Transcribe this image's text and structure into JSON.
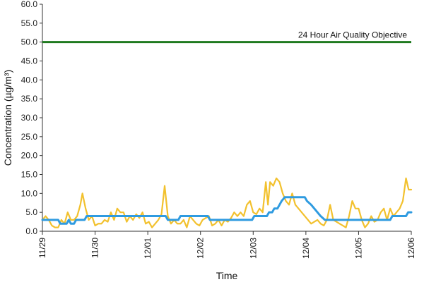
{
  "chart_data": {
    "type": "line",
    "xlabel": "Time",
    "ylabel": "Concentration (µg/m³)",
    "ylim": [
      0,
      60
    ],
    "yticks": [
      "0.0",
      "5.0",
      "10.0",
      "15.0",
      "20.0",
      "25.0",
      "30.0",
      "35.0",
      "40.0",
      "45.0",
      "50.0",
      "55.0",
      "60.0"
    ],
    "xticks": [
      "11/29",
      "11/30",
      "12/01",
      "12/02",
      "12/03",
      "12/04",
      "12/05",
      "12/06"
    ],
    "x_range_days": [
      0,
      7
    ],
    "grid": false,
    "colors": {
      "objective": "#1f7a1f",
      "series_yellow": "#f2c12e",
      "series_blue": "#2f9be0"
    },
    "objective_line": {
      "value": 50.0,
      "label": "24 Hour Air Quality Objective"
    },
    "series": [
      {
        "color": "#f2c12e",
        "points": [
          [
            0.0,
            3.0
          ],
          [
            0.06,
            4.0
          ],
          [
            0.12,
            3.0
          ],
          [
            0.18,
            1.5
          ],
          [
            0.24,
            1.0
          ],
          [
            0.3,
            1.0
          ],
          [
            0.36,
            3.0
          ],
          [
            0.42,
            2.0
          ],
          [
            0.48,
            5.0
          ],
          [
            0.54,
            3.0
          ],
          [
            0.6,
            3.0
          ],
          [
            0.66,
            4.0
          ],
          [
            0.72,
            7.0
          ],
          [
            0.76,
            10.0
          ],
          [
            0.82,
            6.0
          ],
          [
            0.88,
            3.0
          ],
          [
            0.94,
            4.0
          ],
          [
            1.0,
            1.5
          ],
          [
            1.06,
            2.0
          ],
          [
            1.12,
            2.0
          ],
          [
            1.18,
            3.0
          ],
          [
            1.24,
            2.5
          ],
          [
            1.3,
            5.0
          ],
          [
            1.36,
            3.0
          ],
          [
            1.42,
            6.0
          ],
          [
            1.48,
            5.0
          ],
          [
            1.54,
            5.0
          ],
          [
            1.6,
            2.5
          ],
          [
            1.66,
            4.0
          ],
          [
            1.72,
            3.0
          ],
          [
            1.78,
            4.5
          ],
          [
            1.84,
            3.5
          ],
          [
            1.9,
            5.0
          ],
          [
            1.96,
            2.0
          ],
          [
            2.02,
            2.5
          ],
          [
            2.08,
            1.0
          ],
          [
            2.14,
            2.0
          ],
          [
            2.2,
            3.0
          ],
          [
            2.26,
            4.5
          ],
          [
            2.32,
            12.0
          ],
          [
            2.38,
            4.0
          ],
          [
            2.44,
            2.0
          ],
          [
            2.5,
            3.0
          ],
          [
            2.56,
            2.0
          ],
          [
            2.62,
            2.0
          ],
          [
            2.68,
            3.0
          ],
          [
            2.74,
            1.0
          ],
          [
            2.8,
            4.0
          ],
          [
            2.86,
            3.0
          ],
          [
            2.92,
            2.0
          ],
          [
            2.98,
            1.5
          ],
          [
            3.04,
            3.0
          ],
          [
            3.1,
            3.5
          ],
          [
            3.16,
            4.0
          ],
          [
            3.22,
            1.5
          ],
          [
            3.28,
            2.0
          ],
          [
            3.34,
            3.0
          ],
          [
            3.4,
            1.5
          ],
          [
            3.46,
            3.0
          ],
          [
            3.52,
            2.5
          ],
          [
            3.58,
            3.5
          ],
          [
            3.64,
            5.0
          ],
          [
            3.7,
            4.0
          ],
          [
            3.76,
            5.0
          ],
          [
            3.82,
            4.0
          ],
          [
            3.88,
            7.0
          ],
          [
            3.94,
            8.0
          ],
          [
            4.0,
            5.0
          ],
          [
            4.06,
            4.5
          ],
          [
            4.12,
            6.0
          ],
          [
            4.18,
            5.0
          ],
          [
            4.24,
            13.0
          ],
          [
            4.28,
            7.0
          ],
          [
            4.32,
            13.0
          ],
          [
            4.38,
            12.0
          ],
          [
            4.44,
            14.0
          ],
          [
            4.5,
            13.0
          ],
          [
            4.56,
            10.0
          ],
          [
            4.62,
            8.0
          ],
          [
            4.68,
            7.0
          ],
          [
            4.74,
            10.0
          ],
          [
            4.8,
            7.0
          ],
          [
            4.86,
            6.0
          ],
          [
            4.92,
            5.0
          ],
          [
            4.98,
            4.0
          ],
          [
            5.04,
            3.0
          ],
          [
            5.1,
            2.0
          ],
          [
            5.16,
            2.5
          ],
          [
            5.22,
            3.0
          ],
          [
            5.28,
            2.0
          ],
          [
            5.34,
            1.5
          ],
          [
            5.4,
            3.0
          ],
          [
            5.46,
            7.0
          ],
          [
            5.52,
            3.0
          ],
          [
            5.58,
            2.5
          ],
          [
            5.64,
            2.0
          ],
          [
            5.7,
            1.5
          ],
          [
            5.76,
            1.0
          ],
          [
            5.82,
            4.0
          ],
          [
            5.88,
            8.0
          ],
          [
            5.94,
            6.0
          ],
          [
            6.0,
            6.0
          ],
          [
            6.06,
            3.0
          ],
          [
            6.12,
            1.0
          ],
          [
            6.18,
            2.0
          ],
          [
            6.24,
            4.0
          ],
          [
            6.3,
            2.5
          ],
          [
            6.36,
            3.0
          ],
          [
            6.42,
            5.0
          ],
          [
            6.48,
            6.0
          ],
          [
            6.54,
            3.0
          ],
          [
            6.6,
            6.0
          ],
          [
            6.66,
            4.0
          ],
          [
            6.72,
            5.0
          ],
          [
            6.78,
            6.0
          ],
          [
            6.84,
            8.0
          ],
          [
            6.9,
            14.0
          ],
          [
            6.95,
            11.0
          ],
          [
            7.0,
            11.0
          ]
        ]
      },
      {
        "color": "#2f9be0",
        "points": [
          [
            0.0,
            3.0
          ],
          [
            0.3,
            3.0
          ],
          [
            0.34,
            2.0
          ],
          [
            0.46,
            2.0
          ],
          [
            0.5,
            3.0
          ],
          [
            0.54,
            2.0
          ],
          [
            0.6,
            2.0
          ],
          [
            0.64,
            3.0
          ],
          [
            0.8,
            3.0
          ],
          [
            0.84,
            4.0
          ],
          [
            2.34,
            4.0
          ],
          [
            2.38,
            3.0
          ],
          [
            2.58,
            3.0
          ],
          [
            2.62,
            4.0
          ],
          [
            3.14,
            4.0
          ],
          [
            3.18,
            3.0
          ],
          [
            3.98,
            3.0
          ],
          [
            4.02,
            4.0
          ],
          [
            4.26,
            4.0
          ],
          [
            4.3,
            5.0
          ],
          [
            4.36,
            5.0
          ],
          [
            4.4,
            6.0
          ],
          [
            4.46,
            6.0
          ],
          [
            4.5,
            7.0
          ],
          [
            4.54,
            8.0
          ],
          [
            4.6,
            9.0
          ],
          [
            4.98,
            9.0
          ],
          [
            5.02,
            8.0
          ],
          [
            5.1,
            7.0
          ],
          [
            5.16,
            6.0
          ],
          [
            5.22,
            5.0
          ],
          [
            5.28,
            4.0
          ],
          [
            5.36,
            3.0
          ],
          [
            6.6,
            3.0
          ],
          [
            6.64,
            4.0
          ],
          [
            6.9,
            4.0
          ],
          [
            6.94,
            5.0
          ],
          [
            7.0,
            5.0
          ]
        ]
      }
    ]
  }
}
